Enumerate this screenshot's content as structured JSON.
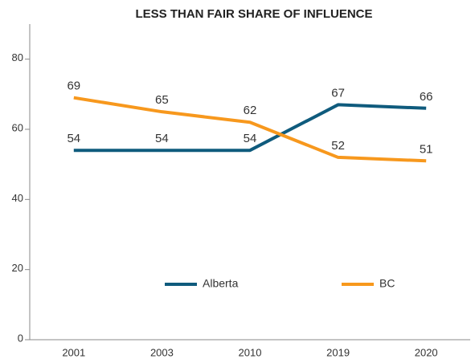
{
  "chart_data": {
    "type": "line",
    "title": "LESS THAN FAIR SHARE OF INFLUENCE",
    "categories": [
      "2001",
      "2003",
      "2010",
      "2019",
      "2020"
    ],
    "series": [
      {
        "name": "Alberta",
        "color": "#0f5b7d",
        "values": [
          54,
          54,
          54,
          67,
          66
        ]
      },
      {
        "name": "BC",
        "color": "#f7981d",
        "values": [
          69,
          65,
          62,
          52,
          51
        ]
      }
    ],
    "ylim": [
      0,
      90
    ],
    "yticks": [
      0,
      20,
      40,
      60,
      80
    ],
    "grid": false
  }
}
